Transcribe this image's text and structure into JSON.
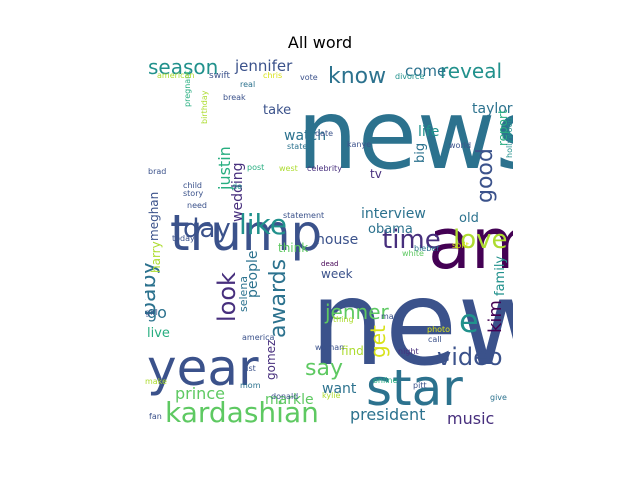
{
  "chart_data": {
    "type": "wordcloud",
    "title": "All word",
    "palette": [
      "#440154",
      "#472f7d",
      "#3b528b",
      "#2c728e",
      "#21918c",
      "#28ae80",
      "#5ec962",
      "#addc30",
      "#d8e219",
      "#fde725"
    ],
    "words": [
      {
        "text": "news",
        "weight": 100,
        "color": "#2c728e",
        "orient": "h"
      },
      {
        "text": "new",
        "weight": 98,
        "color": "#3b528b",
        "orient": "h"
      },
      {
        "text": "amp",
        "weight": 52,
        "color": "#440154",
        "orient": "h"
      },
      {
        "text": "trump",
        "weight": 44,
        "color": "#3b528b",
        "orient": "h"
      },
      {
        "text": "year",
        "weight": 42,
        "color": "#3b528b",
        "orient": "h"
      },
      {
        "text": "star",
        "weight": 40,
        "color": "#2c728e",
        "orient": "h"
      },
      {
        "text": "kardashian",
        "weight": 22,
        "color": "#5ec962",
        "orient": "h"
      },
      {
        "text": "like",
        "weight": 20,
        "color": "#21918c",
        "orient": "h"
      },
      {
        "text": "time",
        "weight": 18,
        "color": "#472f7d",
        "orient": "h"
      },
      {
        "text": "love",
        "weight": 18,
        "color": "#addc30",
        "orient": "h"
      },
      {
        "text": "day",
        "weight": 18,
        "color": "#3b528b",
        "orient": "h"
      },
      {
        "text": "look",
        "weight": 18,
        "color": "#472f7d",
        "orient": "v"
      },
      {
        "text": "video",
        "weight": 17,
        "color": "#3b528b",
        "orient": "h"
      },
      {
        "text": "say",
        "weight": 16,
        "color": "#5ec962",
        "orient": "h"
      },
      {
        "text": "e",
        "weight": 16,
        "color": "#21918c",
        "orient": "h"
      },
      {
        "text": "good",
        "weight": 16,
        "color": "#3b528b",
        "orient": "v"
      },
      {
        "text": "awards",
        "weight": 15,
        "color": "#2c728e",
        "orient": "v"
      },
      {
        "text": "know",
        "weight": 15,
        "color": "#2c728e",
        "orient": "h"
      },
      {
        "text": "baby",
        "weight": 15,
        "color": "#2c728e",
        "orient": "v"
      },
      {
        "text": "season",
        "weight": 13,
        "color": "#21918c",
        "orient": "h"
      },
      {
        "text": "reveal",
        "weight": 13,
        "color": "#21918c",
        "orient": "h"
      },
      {
        "text": "jenner",
        "weight": 13,
        "color": "#5ec962",
        "orient": "h"
      },
      {
        "text": "get",
        "weight": 13,
        "color": "#d8e219",
        "orient": "v"
      },
      {
        "text": "kim",
        "weight": 12,
        "color": "#440154",
        "orient": "v"
      },
      {
        "text": "president",
        "weight": 12,
        "color": "#2c728e",
        "orient": "h"
      },
      {
        "text": "music",
        "weight": 12,
        "color": "#472f7d",
        "orient": "h"
      },
      {
        "text": "jennifer",
        "weight": 11,
        "color": "#3b528b",
        "orient": "h"
      },
      {
        "text": "justin",
        "weight": 11,
        "color": "#28ae80",
        "orient": "v"
      },
      {
        "text": "come",
        "weight": 11,
        "color": "#2c728e",
        "orient": "h"
      },
      {
        "text": "prince",
        "weight": 11,
        "color": "#5ec962",
        "orient": "h"
      },
      {
        "text": "interview",
        "weight": 11,
        "color": "#2c728e",
        "orient": "h"
      },
      {
        "text": "watch",
        "weight": 11,
        "color": "#2c728e",
        "orient": "h"
      },
      {
        "text": "house",
        "weight": 10,
        "color": "#3b528b",
        "orient": "h"
      },
      {
        "text": "markle",
        "weight": 10,
        "color": "#5ec962",
        "orient": "h"
      },
      {
        "text": "want",
        "weight": 10,
        "color": "#2c728e",
        "orient": "h"
      },
      {
        "text": "people",
        "weight": 10,
        "color": "#2c728e",
        "orient": "v"
      },
      {
        "text": "wedding",
        "weight": 10,
        "color": "#472f7d",
        "orient": "v"
      },
      {
        "text": "go",
        "weight": 10,
        "color": "#2c728e",
        "orient": "h"
      },
      {
        "text": "taylor",
        "weight": 9,
        "color": "#2c728e",
        "orient": "h"
      },
      {
        "text": "life",
        "weight": 9,
        "color": "#21918c",
        "orient": "h"
      },
      {
        "text": "live",
        "weight": 9,
        "color": "#28ae80",
        "orient": "h"
      },
      {
        "text": "take",
        "weight": 9,
        "color": "#3b528b",
        "orient": "h"
      },
      {
        "text": "obama",
        "weight": 9,
        "color": "#2c728e",
        "orient": "h"
      },
      {
        "text": "family",
        "weight": 9,
        "color": "#21918c",
        "orient": "v"
      },
      {
        "text": "old",
        "weight": 9,
        "color": "#2c728e",
        "orient": "h"
      },
      {
        "text": "big",
        "weight": 9,
        "color": "#2c728e",
        "orient": "v"
      },
      {
        "text": "report",
        "weight": 8,
        "color": "#28ae80",
        "orient": "v"
      },
      {
        "text": "think",
        "weight": 8,
        "color": "#5ec962",
        "orient": "h"
      },
      {
        "text": "week",
        "weight": 8,
        "color": "#3b528b",
        "orient": "h"
      },
      {
        "text": "find",
        "weight": 8,
        "color": "#addc30",
        "orient": "h"
      },
      {
        "text": "meghan",
        "weight": 8,
        "color": "#3b528b",
        "orient": "v"
      },
      {
        "text": "harry",
        "weight": 7,
        "color": "#addc30",
        "orient": "v"
      },
      {
        "text": "gomez",
        "weight": 7,
        "color": "#472f7d",
        "orient": "v"
      },
      {
        "text": "selena",
        "weight": 6,
        "color": "#2c728e",
        "orient": "v"
      },
      {
        "text": "tv",
        "weight": 7,
        "color": "#472f7d",
        "orient": "h"
      },
      {
        "text": "hollywood",
        "weight": 5,
        "color": "#21918c",
        "orient": "v"
      },
      {
        "text": "birthday",
        "weight": 4,
        "color": "#addc30",
        "orient": "v"
      },
      {
        "text": "pregnant",
        "weight": 4,
        "color": "#28ae80",
        "orient": "v"
      },
      {
        "text": "swift",
        "weight": 5,
        "color": "#3b528b",
        "orient": "h"
      },
      {
        "text": "american",
        "weight": 4,
        "color": "#addc30",
        "orient": "h"
      },
      {
        "text": "chris",
        "weight": 4,
        "color": "#d8e219",
        "orient": "h"
      },
      {
        "text": "real",
        "weight": 4,
        "color": "#2c728e",
        "orient": "h"
      },
      {
        "text": "vote",
        "weight": 4,
        "color": "#3b528b",
        "orient": "h"
      },
      {
        "text": "divorce",
        "weight": 4,
        "color": "#21918c",
        "orient": "h"
      },
      {
        "text": "break",
        "weight": 4,
        "color": "#3b528b",
        "orient": "h"
      },
      {
        "text": "state",
        "weight": 4,
        "color": "#2c728e",
        "orient": "h"
      },
      {
        "text": "kanye",
        "weight": 4,
        "color": "#3b528b",
        "orient": "h"
      },
      {
        "text": "date",
        "weight": 4,
        "color": "#3b528b",
        "orient": "h"
      },
      {
        "text": "world",
        "weight": 4,
        "color": "#3b528b",
        "orient": "h"
      },
      {
        "text": "post",
        "weight": 4,
        "color": "#28ae80",
        "orient": "h"
      },
      {
        "text": "west",
        "weight": 4,
        "color": "#addc30",
        "orient": "h"
      },
      {
        "text": "celebrity",
        "weight": 4,
        "color": "#472f7d",
        "orient": "h"
      },
      {
        "text": "brad",
        "weight": 4,
        "color": "#3b528b",
        "orient": "h"
      },
      {
        "text": "child",
        "weight": 4,
        "color": "#3b528b",
        "orient": "h"
      },
      {
        "text": "story",
        "weight": 4,
        "color": "#3b528b",
        "orient": "h"
      },
      {
        "text": "de",
        "weight": 4,
        "color": "#21918c",
        "orient": "h"
      },
      {
        "text": "need",
        "weight": 4,
        "color": "#3b528b",
        "orient": "h"
      },
      {
        "text": "statement",
        "weight": 4,
        "color": "#3b528b",
        "orient": "h"
      },
      {
        "text": "bieber",
        "weight": 4,
        "color": "#2c728e",
        "orient": "h"
      },
      {
        "text": "today",
        "weight": 4,
        "color": "#3b528b",
        "orient": "h"
      },
      {
        "text": "white",
        "weight": 4,
        "color": "#5ec962",
        "orient": "h"
      },
      {
        "text": "split",
        "weight": 4,
        "color": "#d8e219",
        "orient": "h"
      },
      {
        "text": "dead",
        "weight": 3,
        "color": "#440154",
        "orient": "h"
      },
      {
        "text": "girl",
        "weight": 4,
        "color": "#3b528b",
        "orient": "h"
      },
      {
        "text": "thing",
        "weight": 4,
        "color": "#addc30",
        "orient": "h"
      },
      {
        "text": "man",
        "weight": 4,
        "color": "#3b528b",
        "orient": "h"
      },
      {
        "text": "photo",
        "weight": 4,
        "color": "#d8e219",
        "orient": "h"
      },
      {
        "text": "call",
        "weight": 4,
        "color": "#3b528b",
        "orient": "h"
      },
      {
        "text": "america",
        "weight": 4,
        "color": "#3b528b",
        "orient": "h"
      },
      {
        "text": "woman",
        "weight": 4,
        "color": "#3b528b",
        "orient": "h"
      },
      {
        "text": "night",
        "weight": 4,
        "color": "#472f7d",
        "orient": "h"
      },
      {
        "text": "list",
        "weight": 4,
        "color": "#3b528b",
        "orient": "h"
      },
      {
        "text": "mom",
        "weight": 4,
        "color": "#2c728e",
        "orient": "h"
      },
      {
        "text": "make",
        "weight": 4,
        "color": "#addc30",
        "orient": "h"
      },
      {
        "text": "online",
        "weight": 4,
        "color": "#28ae80",
        "orient": "h"
      },
      {
        "text": "pitt",
        "weight": 4,
        "color": "#3b528b",
        "orient": "h"
      },
      {
        "text": "donald",
        "weight": 4,
        "color": "#3b528b",
        "orient": "h"
      },
      {
        "text": "kylie",
        "weight": 4,
        "color": "#addc30",
        "orient": "h"
      },
      {
        "text": "give",
        "weight": 4,
        "color": "#2c728e",
        "orient": "h"
      },
      {
        "text": "fan",
        "weight": 4,
        "color": "#3b528b",
        "orient": "h"
      }
    ]
  }
}
